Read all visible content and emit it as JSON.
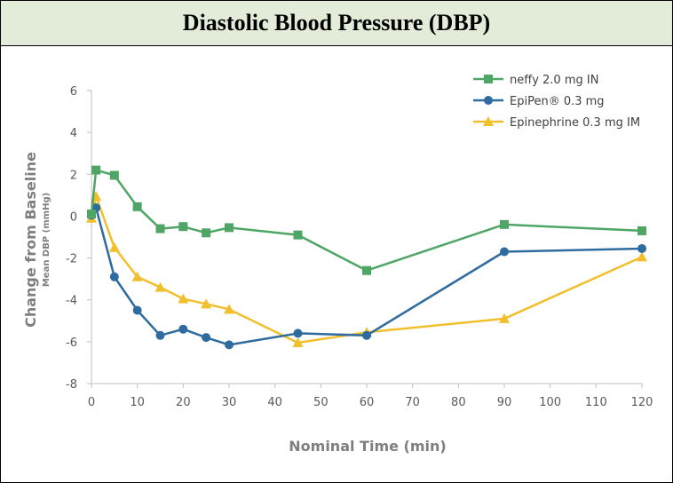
{
  "chart_data": {
    "type": "line",
    "title": "Diastolic Blood Pressure (DBP)",
    "xlabel": "Nominal Time (min)",
    "ylabel": "Change from Baseline",
    "ylabel_sub": "Mean DBP (mmHg)",
    "xlim": [
      0,
      120
    ],
    "ylim": [
      -8,
      6
    ],
    "xticks": [
      0,
      10,
      20,
      30,
      40,
      50,
      60,
      70,
      80,
      90,
      100,
      110,
      120
    ],
    "yticks": [
      6,
      4,
      2,
      0,
      -2,
      -4,
      -6,
      -8
    ],
    "grid": false,
    "legend_position": "top-right",
    "series": [
      {
        "name": "neffy 2.0 mg IN",
        "color": "#4ea565",
        "marker": "square",
        "x": [
          0,
          1,
          5,
          10,
          15,
          20,
          25,
          30,
          45,
          60,
          90,
          120
        ],
        "y": [
          0.1,
          2.2,
          1.95,
          0.45,
          -0.6,
          -0.5,
          -0.8,
          -0.55,
          -0.9,
          -2.6,
          -0.4,
          -0.7
        ]
      },
      {
        "name": "EpiPen® 0.3 mg",
        "color": "#2e6b9e",
        "marker": "circle",
        "x": [
          0,
          1,
          5,
          10,
          15,
          20,
          25,
          30,
          45,
          60,
          90,
          120
        ],
        "y": [
          0.05,
          0.4,
          -2.9,
          -4.5,
          -5.7,
          -5.4,
          -5.8,
          -6.15,
          -5.6,
          -5.7,
          -1.7,
          -1.55
        ]
      },
      {
        "name": "Epinephrine 0.3 mg IM",
        "color": "#f2bf2c",
        "marker": "triangle",
        "x": [
          0,
          1,
          5,
          10,
          15,
          20,
          25,
          30,
          45,
          60,
          90,
          120
        ],
        "y": [
          -0.1,
          0.95,
          -1.5,
          -2.9,
          -3.4,
          -3.95,
          -4.2,
          -4.45,
          -6.05,
          -5.55,
          -4.9,
          -1.95
        ]
      }
    ]
  }
}
